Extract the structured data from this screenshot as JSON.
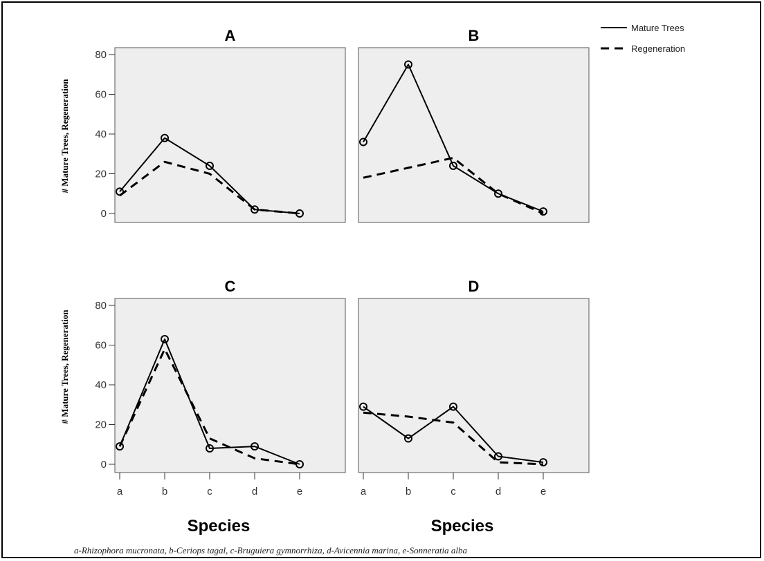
{
  "legend": {
    "mature_label": "Mature Trees",
    "regen_label": "Regeneration"
  },
  "x_axis_title": "Species",
  "y_axis_title": "# Mature Trees, Regeneration",
  "footnote": "a-Rhizophora mucronata, b-Ceriops tagal, c-Bruguiera gymnorrhiza, d-Avicennia marina, e-Sonneratia alba",
  "colors": {
    "plot_bg": "#eeeeee",
    "line": "#000000"
  },
  "chart_data": [
    {
      "type": "line",
      "title": "A",
      "categories": [
        "a",
        "b",
        "c",
        "d",
        "e"
      ],
      "ylim": [
        0,
        80
      ],
      "yticks": [
        0,
        20,
        40,
        60,
        80
      ],
      "series": [
        {
          "name": "Mature Trees",
          "style": "solid",
          "values": [
            11,
            38,
            24,
            2,
            0
          ]
        },
        {
          "name": "Regeneration",
          "style": "dashed",
          "values": [
            9,
            26,
            20,
            2,
            0
          ]
        }
      ]
    },
    {
      "type": "line",
      "title": "B",
      "categories": [
        "a",
        "b",
        "c",
        "d",
        "e"
      ],
      "ylim": [
        0,
        80
      ],
      "yticks": [
        0,
        20,
        40,
        60,
        80
      ],
      "series": [
        {
          "name": "Mature Trees",
          "style": "solid",
          "values": [
            36,
            75,
            24,
            10,
            1
          ]
        },
        {
          "name": "Regeneration",
          "style": "dashed",
          "values": [
            18,
            23,
            28,
            10,
            0
          ]
        }
      ]
    },
    {
      "type": "line",
      "title": "C",
      "categories": [
        "a",
        "b",
        "c",
        "d",
        "e"
      ],
      "ylim": [
        0,
        80
      ],
      "yticks": [
        0,
        20,
        40,
        60,
        80
      ],
      "series": [
        {
          "name": "Mature Trees",
          "style": "solid",
          "values": [
            9,
            63,
            8,
            9,
            0
          ]
        },
        {
          "name": "Regeneration",
          "style": "dashed",
          "values": [
            9,
            58,
            13,
            3,
            0
          ]
        }
      ]
    },
    {
      "type": "line",
      "title": "D",
      "categories": [
        "a",
        "b",
        "c",
        "d",
        "e"
      ],
      "ylim": [
        0,
        80
      ],
      "yticks": [
        0,
        20,
        40,
        60,
        80
      ],
      "series": [
        {
          "name": "Mature Trees",
          "style": "solid",
          "values": [
            29,
            13,
            29,
            4,
            1
          ]
        },
        {
          "name": "Regeneration",
          "style": "dashed",
          "values": [
            26,
            24,
            21,
            1,
            0
          ]
        }
      ]
    }
  ]
}
